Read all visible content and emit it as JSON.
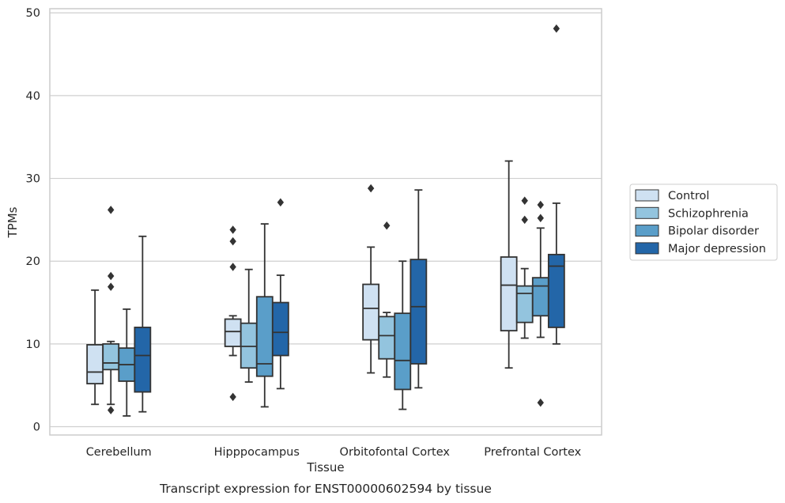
{
  "caption": "Transcript expression for ENST00000602594 by tissue",
  "colors": {
    "grid": "#cfcfcf",
    "spine": "#cccccc",
    "line": "#333333",
    "text": "#262626"
  },
  "chart_data": {
    "type": "box",
    "title": "",
    "xlabel": "Tissue",
    "ylabel": "TPMs",
    "categories": [
      "Cerebellum",
      "Hipppocampus",
      "Orbitofontal Cortex",
      "Prefrontal Cortex"
    ],
    "ylim": [
      -1,
      50.5
    ],
    "yticks": [
      0,
      10,
      20,
      30,
      40,
      50
    ],
    "grid": true,
    "legend_position": "right",
    "series": [
      {
        "name": "Control",
        "color": "#cfe1f2",
        "boxes": [
          {
            "whislo": 2.7,
            "q1": 5.2,
            "med": 6.6,
            "q3": 9.9,
            "whishi": 16.5,
            "fliers": []
          },
          {
            "whislo": 8.6,
            "q1": 9.7,
            "med": 11.5,
            "q3": 13.0,
            "whishi": 13.4,
            "fliers": [
              3.6,
              19.3,
              22.4,
              23.8
            ]
          },
          {
            "whislo": 6.5,
            "q1": 10.5,
            "med": 14.3,
            "q3": 17.2,
            "whishi": 21.7,
            "fliers": [
              28.8
            ]
          },
          {
            "whislo": 7.1,
            "q1": 11.6,
            "med": 17.1,
            "q3": 20.5,
            "whishi": 32.1,
            "fliers": []
          }
        ]
      },
      {
        "name": "Schizophrenia",
        "color": "#93c4de",
        "boxes": [
          {
            "whislo": 2.7,
            "q1": 6.9,
            "med": 7.7,
            "q3": 10.0,
            "whishi": 10.3,
            "fliers": [
              2.0,
              16.9,
              18.2,
              26.2
            ]
          },
          {
            "whislo": 5.4,
            "q1": 7.1,
            "med": 9.7,
            "q3": 12.5,
            "whishi": 19.0,
            "fliers": []
          },
          {
            "whislo": 6.0,
            "q1": 8.2,
            "med": 11.0,
            "q3": 13.3,
            "whishi": 13.8,
            "fliers": [
              24.3
            ]
          },
          {
            "whislo": 10.7,
            "q1": 12.6,
            "med": 16.1,
            "q3": 17.0,
            "whishi": 19.1,
            "fliers": [
              25.0,
              27.3
            ]
          }
        ]
      },
      {
        "name": "Bipolar disorder",
        "color": "#5a9ec9",
        "boxes": [
          {
            "whislo": 1.3,
            "q1": 5.5,
            "med": 7.5,
            "q3": 9.5,
            "whishi": 14.2,
            "fliers": []
          },
          {
            "whislo": 2.4,
            "q1": 6.1,
            "med": 7.6,
            "q3": 15.7,
            "whishi": 24.5,
            "fliers": []
          },
          {
            "whislo": 2.1,
            "q1": 4.5,
            "med": 8.0,
            "q3": 13.7,
            "whishi": 20.0,
            "fliers": []
          },
          {
            "whislo": 10.8,
            "q1": 13.4,
            "med": 17.0,
            "q3": 18.0,
            "whishi": 24.0,
            "fliers": [
              2.9,
              25.2,
              26.8
            ]
          }
        ]
      },
      {
        "name": "Major depression",
        "color": "#2366a8",
        "boxes": [
          {
            "whislo": 1.8,
            "q1": 4.2,
            "med": 8.6,
            "q3": 12.0,
            "whishi": 23.0,
            "fliers": []
          },
          {
            "whislo": 4.6,
            "q1": 8.6,
            "med": 11.4,
            "q3": 15.0,
            "whishi": 18.3,
            "fliers": [
              27.1
            ]
          },
          {
            "whislo": 4.7,
            "q1": 7.6,
            "med": 14.5,
            "q3": 20.2,
            "whishi": 28.6,
            "fliers": []
          },
          {
            "whislo": 10.0,
            "q1": 12.0,
            "med": 19.4,
            "q3": 20.8,
            "whishi": 27.0,
            "fliers": [
              48.1
            ]
          }
        ]
      }
    ]
  }
}
